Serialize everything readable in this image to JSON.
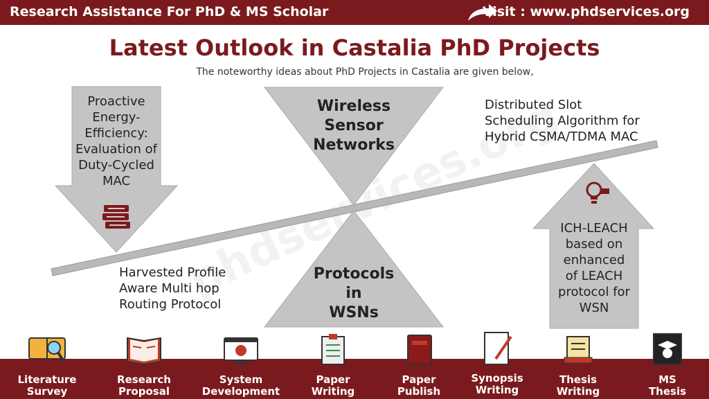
{
  "header": {
    "left_text": "Research Assistance For PhD & MS Scholar",
    "right_text": "Visit : www.phdservices.org"
  },
  "title": "Latest Outlook in Castalia PhD Projects",
  "subtitle": "The noteworthy ideas about PhD Projects in Castalia are given below,",
  "watermark": "phdservices.org",
  "topics": {
    "down_arrow": [
      "Proactive",
      "Energy-",
      "Efficiency:",
      "Evaluation of",
      "Duty-Cycled",
      "MAC"
    ],
    "inverted_triangle": [
      "Wireless",
      "Sensor",
      "Networks"
    ],
    "upright_triangle": [
      "Protocols",
      "in",
      "WSNs"
    ],
    "up_arrow": [
      "ICH-LEACH",
      "based on",
      "enhanced",
      "of LEACH",
      "protocol for",
      "WSN"
    ],
    "top_right_text": [
      "Distributed Slot",
      "Scheduling Algorithm for",
      "Hybrid CSMA/TDMA MAC"
    ],
    "bottom_left_text": [
      "Harvested Profile",
      "Aware Multi hop",
      "Routing Protocol"
    ]
  },
  "colors": {
    "brand_red": "#7b1a1e",
    "shape_gray": "#c4c4c4"
  },
  "services": [
    {
      "line1": "Literature",
      "line2": "Survey",
      "icon": "magnifier-icon"
    },
    {
      "line1": "Research",
      "line2": "Proposal",
      "icon": "open-book-icon"
    },
    {
      "line1": "System",
      "line2": "Development",
      "icon": "monitor-code-icon"
    },
    {
      "line1": "Paper",
      "line2": "Writing",
      "icon": "clipboard-icon"
    },
    {
      "line1": "Paper",
      "line2": "Publish",
      "icon": "book-icon"
    },
    {
      "line1": "Synopsis",
      "line2": "Writing",
      "icon": "pen-paper-icon"
    },
    {
      "line1": "Thesis",
      "line2": "Writing",
      "icon": "scroll-icon"
    },
    {
      "line1": "MS",
      "line2": "Thesis",
      "icon": "graduate-icon"
    }
  ]
}
